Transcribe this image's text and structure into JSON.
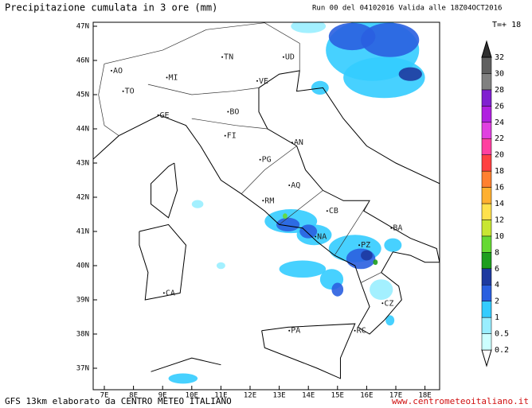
{
  "header": {
    "title": "Precipitazione cumulata in 3 ore (mm)",
    "run": "Run 00 del 04102016  Valida alle 18Z04OCT2016",
    "timestep": "T=+ 18"
  },
  "map": {
    "lat_labels": [
      "47N",
      "46N",
      "45N",
      "44N",
      "43N",
      "42N",
      "41N",
      "40N",
      "39N",
      "38N",
      "37N"
    ],
    "lon_labels": [
      "7E",
      "8E",
      "9E",
      "10E",
      "11E",
      "12E",
      "13E",
      "14E",
      "15E",
      "16E",
      "17E",
      "18E"
    ],
    "cities": [
      "AO",
      "MI",
      "TO",
      "GE",
      "TN",
      "UD",
      "VE",
      "BO",
      "FI",
      "AN",
      "PG",
      "AQ",
      "RM",
      "CB",
      "NA",
      "BA",
      "PZ",
      "CZ",
      "RC",
      "PA",
      "CA"
    ]
  },
  "colorbar": {
    "levels": [
      0.2,
      0.5,
      1,
      2,
      4,
      6,
      8,
      10,
      12,
      14,
      16,
      18,
      20,
      22,
      24,
      26,
      28,
      30,
      32
    ],
    "colors": [
      "#ffffff",
      "#ccffff",
      "#99eeff",
      "#33ccff",
      "#2a5fe0",
      "#1e3aa0",
      "#1e9e1e",
      "#66d933",
      "#c8e632",
      "#ffe14d",
      "#ffb030",
      "#ff8030",
      "#ff4040",
      "#ff40a0",
      "#e040e0",
      "#b020e0",
      "#8020d0",
      "#808080",
      "#606060",
      "#303030"
    ]
  },
  "footer": {
    "left": "GFS 13km elaborato da CENTRO METEO ITALIANO",
    "right": "www.centrometeoitaliano.it"
  }
}
